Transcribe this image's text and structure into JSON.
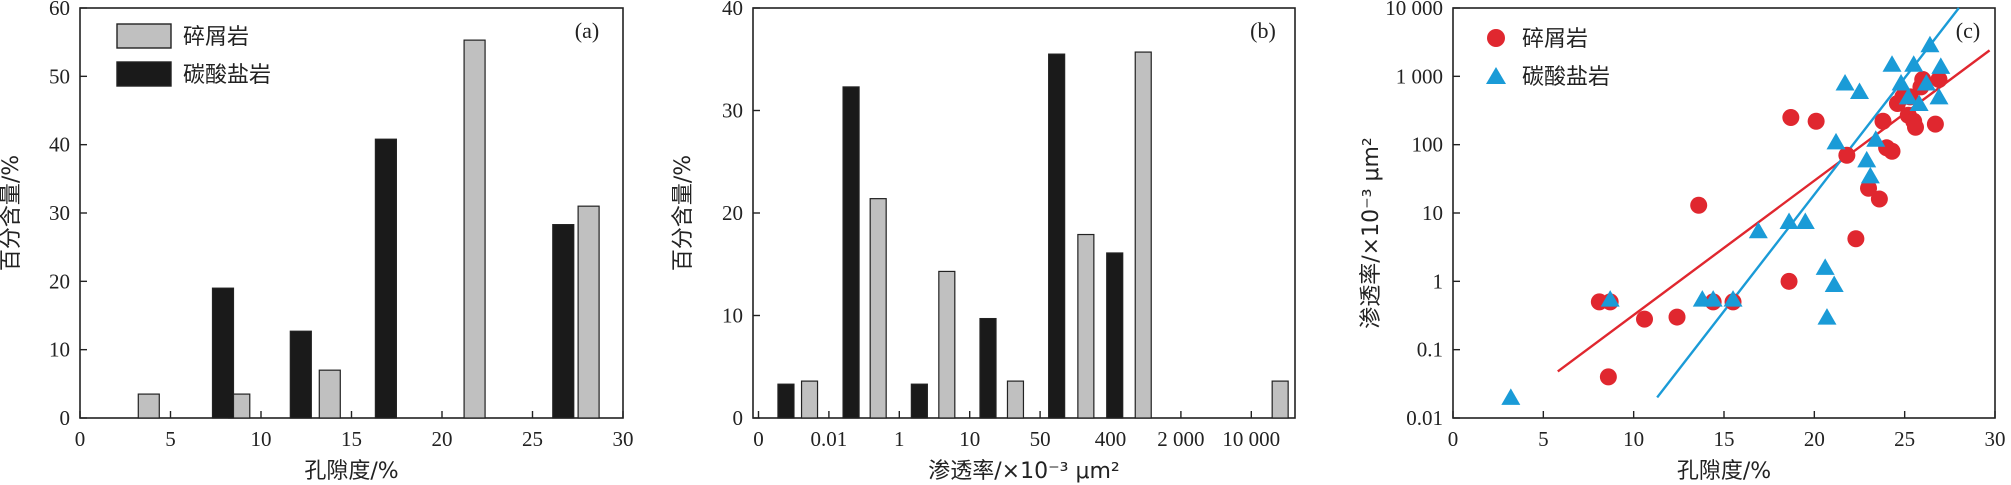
{
  "chart_data": [
    {
      "panel": "(a)",
      "type": "bar",
      "xlabel": "孔隙度/%",
      "ylabel": "百分含量/%",
      "xlim": [
        0,
        30
      ],
      "ylim": [
        0,
        60
      ],
      "xticks": [
        "0",
        "5",
        "10",
        "15",
        "20",
        "25",
        "30"
      ],
      "yticks": [
        "0",
        "10",
        "20",
        "30",
        "40",
        "50",
        "60"
      ],
      "legend_position": "top-left",
      "series": [
        {
          "name": "碎屑岩",
          "color": "#c0c0c0",
          "x": [
            3.8,
            8.8,
            13.8,
            21.8,
            28.1
          ],
          "values": [
            3.5,
            3.5,
            7,
            55.3,
            31
          ]
        },
        {
          "name": "碳酸盐岩",
          "color": "#1a1a1a",
          "x": [
            7.9,
            12.2,
            16.9,
            26.7
          ],
          "values": [
            19,
            12.7,
            40.8,
            28.3
          ]
        }
      ]
    },
    {
      "panel": "(b)",
      "type": "bar",
      "xlabel": "渗透率/×10⁻³ μm²",
      "ylabel": "百分含量/%",
      "ylim": [
        0,
        40
      ],
      "xticks": [
        "0",
        "0.01",
        "1",
        "10",
        "50",
        "400",
        "2 000",
        "10 000"
      ],
      "yticks": [
        "0",
        "10",
        "20",
        "30",
        "40"
      ],
      "series": [
        {
          "name": "碎屑岩",
          "color": "#c0c0c0",
          "x": [
            1.45,
            3.4,
            5.35,
            7.3,
            9.3,
            10.93,
            14.82
          ],
          "values": [
            3.6,
            21.4,
            14.3,
            3.6,
            17.9,
            35.7,
            3.6
          ]
        },
        {
          "name": "碳酸盐岩",
          "color": "#1a1a1a",
          "x": [
            0.78,
            2.63,
            4.57,
            6.52,
            8.47,
            10.12
          ],
          "values": [
            3.3,
            32.3,
            3.3,
            9.7,
            35.5,
            16.1
          ]
        }
      ]
    },
    {
      "panel": "(c)",
      "type": "scatter",
      "xlabel": "孔隙度/%",
      "ylabel": "渗透率/×10⁻³ μm²",
      "xlim": [
        0,
        30
      ],
      "ylim": [
        0.01,
        10000
      ],
      "yscale": "log",
      "xticks": [
        "0",
        "5",
        "10",
        "15",
        "20",
        "25",
        "30"
      ],
      "yticks": [
        "0.01",
        "0.1",
        "1",
        "10",
        "100",
        "1 000",
        "10 000"
      ],
      "legend_position": "top-left",
      "series": [
        {
          "name": "碎屑岩",
          "color": "#e0272f",
          "marker": "circle",
          "x": [
            8.1,
            8.6,
            8.7,
            10.6,
            12.4,
            13.6,
            14.4,
            15.5,
            18.6,
            18.7,
            20.1,
            21.8,
            22.3,
            23.0,
            23.6,
            23.8,
            24.0,
            24.3,
            24.6,
            24.9,
            25.2,
            25.3,
            25.5,
            25.6,
            25.9,
            26.0,
            26.7,
            26.9
          ],
          "y": [
            0.5,
            0.04,
            0.5,
            0.28,
            0.3,
            13,
            0.5,
            0.5,
            1.0,
            250,
            220,
            70,
            4.2,
            23,
            16,
            220,
            90,
            80,
            400,
            500,
            270,
            500,
            220,
            180,
            700,
            900,
            200,
            900
          ]
        },
        {
          "name": "碳酸盐岩",
          "color": "#1a9bd7",
          "marker": "triangle",
          "x": [
            3.2,
            8.7,
            13.8,
            14.4,
            15.5,
            16.9,
            18.6,
            19.5,
            20.6,
            20.7,
            21.1,
            21.2,
            21.7,
            22.5,
            22.9,
            23.1,
            23.4,
            24.3,
            24.8,
            25.2,
            25.5,
            25.8,
            26.2,
            26.4,
            26.9,
            27.0
          ],
          "y": [
            0.02,
            0.55,
            0.55,
            0.55,
            0.55,
            5.5,
            7.5,
            7.5,
            1.6,
            0.3,
            0.9,
            110,
            800,
            600,
            60,
            35,
            120,
            1500,
            800,
            500,
            1500,
            400,
            800,
            2900,
            500,
            1400
          ]
        }
      ],
      "trendlines": [
        {
          "series": "碎屑岩",
          "color": "#e0272f",
          "x": [
            5.8,
            29.7
          ],
          "y": [
            0.048,
            2400
          ]
        },
        {
          "series": "碳酸盐岩",
          "color": "#1a9bd7",
          "x": [
            11.3,
            28.0
          ],
          "y": [
            0.02,
            10000
          ]
        }
      ]
    }
  ]
}
